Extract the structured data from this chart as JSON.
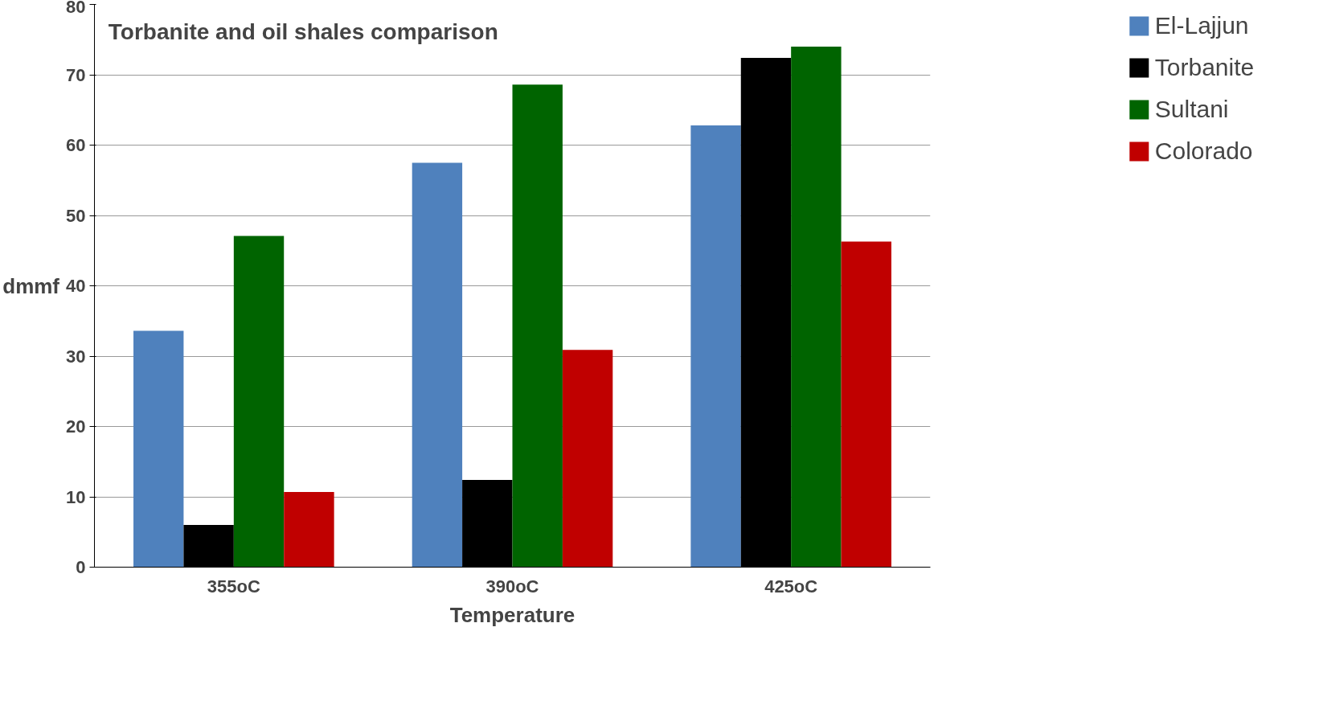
{
  "chart_data": {
    "type": "bar",
    "title": "Torbanite and oil shales comparison",
    "xlabel": "Temperature",
    "ylabel": "dmmf",
    "categories": [
      "355oC",
      "390oC",
      "425oC"
    ],
    "series": [
      {
        "name": "El-Lajjun",
        "color": "#4f81bd",
        "values": [
          33.6,
          57.5,
          62.8
        ]
      },
      {
        "name": "Torbanite",
        "color": "#000000",
        "values": [
          6.0,
          12.4,
          72.4
        ]
      },
      {
        "name": "Sultani",
        "color": "#006400",
        "values": [
          47.1,
          68.6,
          74.0
        ]
      },
      {
        "name": "Colorado",
        "color": "#c00000",
        "values": [
          10.7,
          30.9,
          46.3
        ]
      }
    ],
    "ylim": [
      0,
      80
    ],
    "yticks": [
      0,
      10,
      20,
      30,
      40,
      50,
      60,
      70,
      80
    ],
    "grid": "y",
    "legend": "top right"
  }
}
